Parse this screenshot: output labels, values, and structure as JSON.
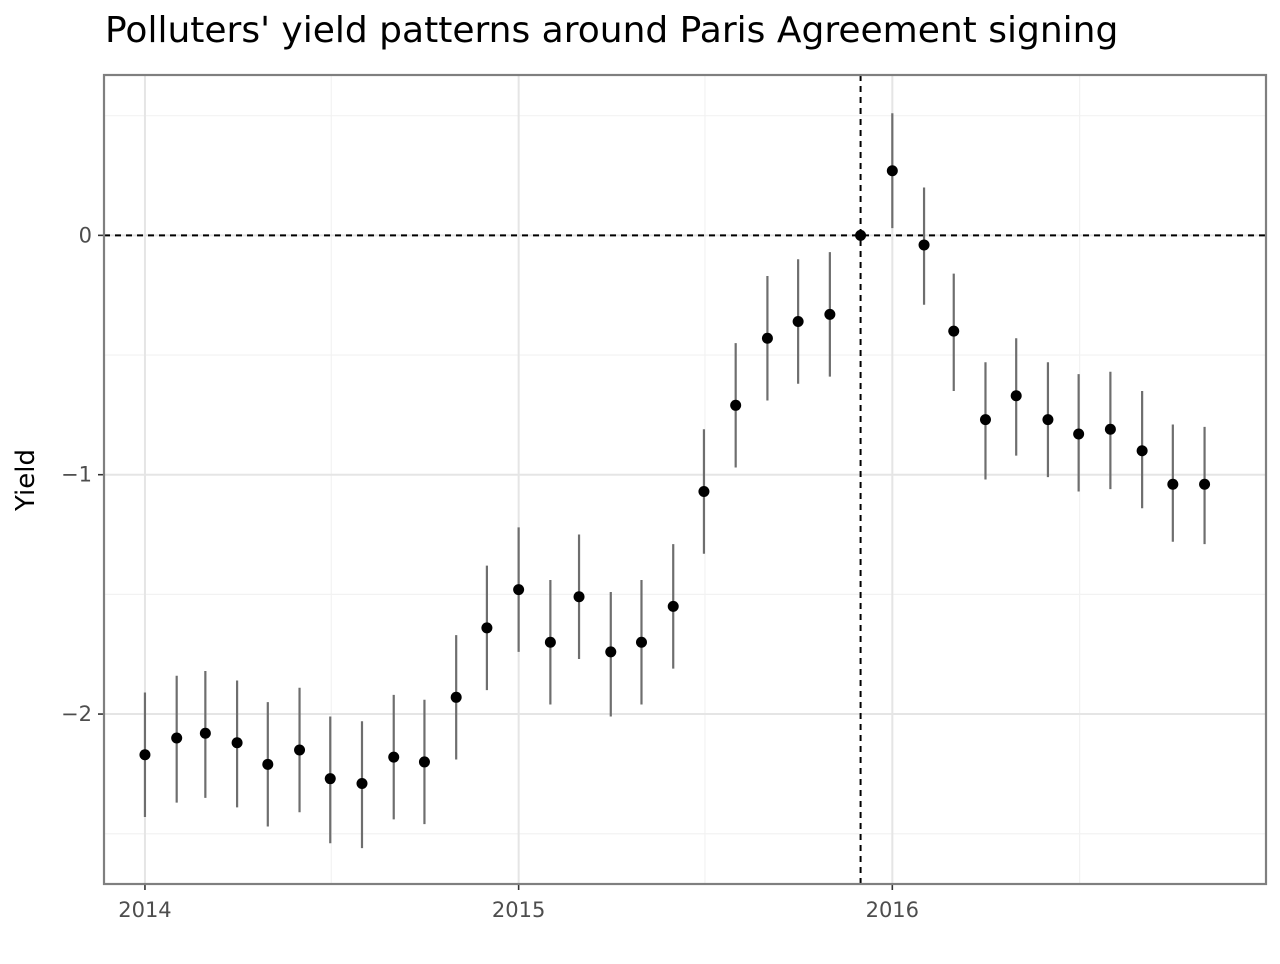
{
  "chart_data": {
    "type": "scatter",
    "title": "Polluters' yield patterns around Paris Agreement signing",
    "xlabel": "",
    "ylabel": "Yield",
    "x_ticks": [
      "2014",
      "2015",
      "2016"
    ],
    "y_ticks": [
      "0",
      "−1",
      "−2"
    ],
    "xlim": [
      "2013-11-22",
      "2016-12-31"
    ],
    "ylim": [
      -2.71,
      0.67
    ],
    "grid": true,
    "reference_lines": {
      "vertical_date": "2015-12-01",
      "horizontal_value": 0
    },
    "series": [
      {
        "points": [
          {
            "date": "2014-01-01",
            "yield": -2.17,
            "lower": -2.43,
            "upper": -1.91
          },
          {
            "date": "2014-02-01",
            "yield": -2.1,
            "lower": -2.37,
            "upper": -1.84
          },
          {
            "date": "2014-03-01",
            "yield": -2.08,
            "lower": -2.35,
            "upper": -1.82
          },
          {
            "date": "2014-04-01",
            "yield": -2.12,
            "lower": -2.39,
            "upper": -1.86
          },
          {
            "date": "2014-05-01",
            "yield": -2.21,
            "lower": -2.47,
            "upper": -1.95
          },
          {
            "date": "2014-06-01",
            "yield": -2.15,
            "lower": -2.41,
            "upper": -1.89
          },
          {
            "date": "2014-07-01",
            "yield": -2.27,
            "lower": -2.54,
            "upper": -2.01
          },
          {
            "date": "2014-08-01",
            "yield": -2.29,
            "lower": -2.56,
            "upper": -2.03
          },
          {
            "date": "2014-09-01",
            "yield": -2.18,
            "lower": -2.44,
            "upper": -1.92
          },
          {
            "date": "2014-10-01",
            "yield": -2.2,
            "lower": -2.46,
            "upper": -1.94
          },
          {
            "date": "2014-11-01",
            "yield": -1.93,
            "lower": -2.19,
            "upper": -1.67
          },
          {
            "date": "2014-12-01",
            "yield": -1.64,
            "lower": -1.9,
            "upper": -1.38
          },
          {
            "date": "2015-01-01",
            "yield": -1.48,
            "lower": -1.74,
            "upper": -1.22
          },
          {
            "date": "2015-02-01",
            "yield": -1.7,
            "lower": -1.96,
            "upper": -1.44
          },
          {
            "date": "2015-03-01",
            "yield": -1.51,
            "lower": -1.77,
            "upper": -1.25
          },
          {
            "date": "2015-04-01",
            "yield": -1.74,
            "lower": -2.01,
            "upper": -1.49
          },
          {
            "date": "2015-05-01",
            "yield": -1.7,
            "lower": -1.96,
            "upper": -1.44
          },
          {
            "date": "2015-06-01",
            "yield": -1.55,
            "lower": -1.81,
            "upper": -1.29
          },
          {
            "date": "2015-07-01",
            "yield": -1.07,
            "lower": -1.33,
            "upper": -0.81
          },
          {
            "date": "2015-08-01",
            "yield": -0.71,
            "lower": -0.97,
            "upper": -0.45
          },
          {
            "date": "2015-09-01",
            "yield": -0.43,
            "lower": -0.69,
            "upper": -0.17
          },
          {
            "date": "2015-10-01",
            "yield": -0.36,
            "lower": -0.62,
            "upper": -0.1
          },
          {
            "date": "2015-11-01",
            "yield": -0.33,
            "lower": -0.59,
            "upper": -0.07
          },
          {
            "date": "2015-12-01",
            "yield": 0.0
          },
          {
            "date": "2016-01-01",
            "yield": 0.27,
            "lower": 0.03,
            "upper": 0.51
          },
          {
            "date": "2016-02-01",
            "yield": -0.04,
            "lower": -0.29,
            "upper": 0.2
          },
          {
            "date": "2016-03-01",
            "yield": -0.4,
            "lower": -0.65,
            "upper": -0.16
          },
          {
            "date": "2016-04-01",
            "yield": -0.77,
            "lower": -1.02,
            "upper": -0.53
          },
          {
            "date": "2016-05-01",
            "yield": -0.67,
            "lower": -0.92,
            "upper": -0.43
          },
          {
            "date": "2016-06-01",
            "yield": -0.77,
            "lower": -1.01,
            "upper": -0.53
          },
          {
            "date": "2016-07-01",
            "yield": -0.83,
            "lower": -1.07,
            "upper": -0.58
          },
          {
            "date": "2016-08-01",
            "yield": -0.81,
            "lower": -1.06,
            "upper": -0.57
          },
          {
            "date": "2016-09-01",
            "yield": -0.9,
            "lower": -1.14,
            "upper": -0.65
          },
          {
            "date": "2016-10-01",
            "yield": -1.04,
            "lower": -1.28,
            "upper": -0.79
          },
          {
            "date": "2016-11-01",
            "yield": -1.04,
            "lower": -1.29,
            "upper": -0.8
          }
        ]
      }
    ]
  }
}
